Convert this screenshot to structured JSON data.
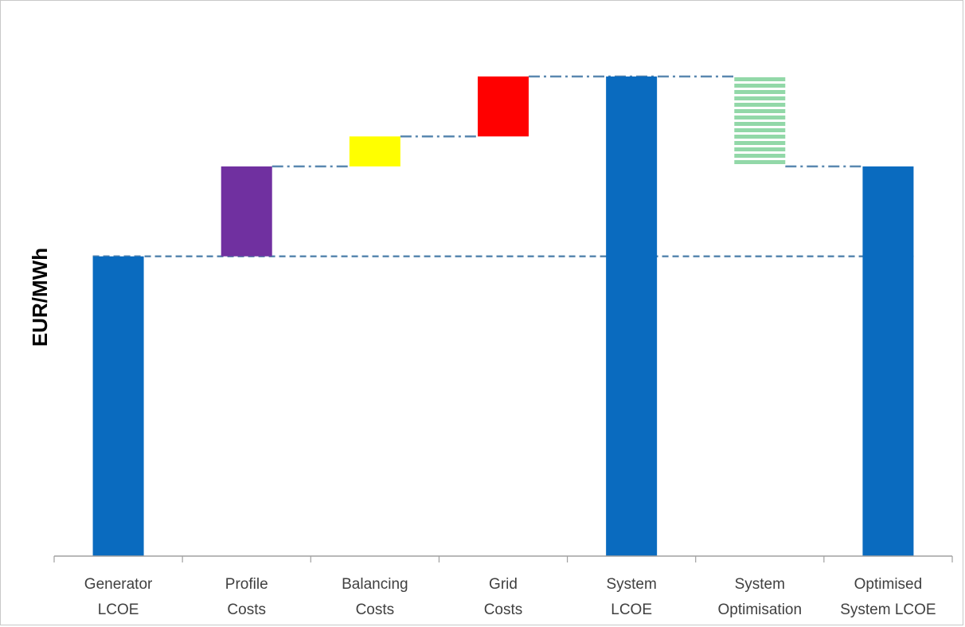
{
  "chart_data": {
    "type": "bar",
    "subtype": "waterfall",
    "title": "",
    "xlabel": "",
    "ylabel": "EUR/MWh",
    "ylim": [
      0,
      100
    ],
    "grid": false,
    "legend": "none",
    "categories": [
      [
        "Generator",
        "LCOE"
      ],
      [
        "Profile",
        "Costs"
      ],
      [
        "Balancing",
        "Costs"
      ],
      [
        "Grid",
        "Costs"
      ],
      [
        "System",
        "LCOE"
      ],
      [
        "System",
        "Optimisation"
      ],
      [
        "Optimised",
        "System LCOE"
      ]
    ],
    "bars": [
      {
        "category": "Generator LCOE",
        "base": 0,
        "top": 50,
        "kind": "total",
        "color": "#0a6bbf"
      },
      {
        "category": "Profile Costs",
        "base": 50,
        "top": 65,
        "kind": "increase",
        "color": "#7030a0"
      },
      {
        "category": "Balancing Costs",
        "base": 65,
        "top": 70,
        "kind": "increase",
        "color": "#ffff00"
      },
      {
        "category": "Grid Costs",
        "base": 70,
        "top": 80,
        "kind": "increase",
        "color": "#ff0000"
      },
      {
        "category": "System LCOE",
        "base": 0,
        "top": 80,
        "kind": "total",
        "color": "#0a6bbf"
      },
      {
        "category": "System Optimisation",
        "base": 65,
        "top": 80,
        "kind": "decrease",
        "color": "#92d8a8",
        "pattern": "horizontal-stripes"
      },
      {
        "category": "Optimised System LCOE",
        "base": 0,
        "top": 65,
        "kind": "total",
        "color": "#0a6bbf"
      }
    ],
    "connectors": [
      {
        "from": 0,
        "to": 6,
        "level": 50,
        "style": "dashed"
      },
      {
        "from": 1,
        "to": 2,
        "level": 65,
        "style": "dash-dot"
      },
      {
        "from": 2,
        "to": 3,
        "level": 70,
        "style": "dash-dot"
      },
      {
        "from": 3,
        "to": 5,
        "level": 80,
        "style": "dash-dot"
      },
      {
        "from": 5,
        "to": 6,
        "level": 65,
        "style": "dash-dot"
      }
    ],
    "connector_color": "#5a88b0",
    "axis_color": "#a0a0a0"
  }
}
